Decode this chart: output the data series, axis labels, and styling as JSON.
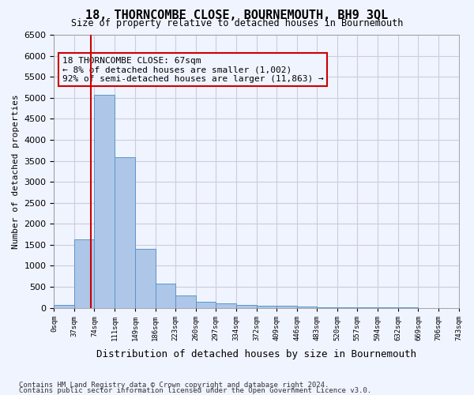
{
  "title": "18, THORNCOMBE CLOSE, BOURNEMOUTH, BH9 3QL",
  "subtitle": "Size of property relative to detached houses in Bournemouth",
  "xlabel": "Distribution of detached houses by size in Bournemouth",
  "ylabel": "Number of detached properties",
  "footer_line1": "Contains HM Land Registry data © Crown copyright and database right 2024.",
  "footer_line2": "Contains public sector information licensed under the Open Government Licence v3.0.",
  "annotation_title": "18 THORNCOMBE CLOSE: 67sqm",
  "annotation_line1": "← 8% of detached houses are smaller (1,002)",
  "annotation_line2": "92% of semi-detached houses are larger (11,863) →",
  "property_size": 67,
  "bin_edges": [
    0,
    37,
    74,
    111,
    149,
    186,
    223,
    260,
    297,
    334,
    372,
    409,
    446,
    483,
    520,
    557,
    594,
    632,
    669,
    706,
    743
  ],
  "bar_values": [
    70,
    1630,
    5080,
    3580,
    1400,
    580,
    290,
    145,
    110,
    75,
    55,
    55,
    30,
    15,
    10,
    8,
    5,
    3,
    2,
    2
  ],
  "bar_color": "#aec6e8",
  "bar_edge_color": "#5a96c8",
  "grid_color": "#ccccdd",
  "vline_color": "#cc0000",
  "annotation_box_edge": "#cc0000",
  "background_color": "#f0f4ff",
  "ylim": [
    0,
    6500
  ],
  "yticks": [
    0,
    500,
    1000,
    1500,
    2000,
    2500,
    3000,
    3500,
    4000,
    4500,
    5000,
    5500,
    6000,
    6500
  ]
}
